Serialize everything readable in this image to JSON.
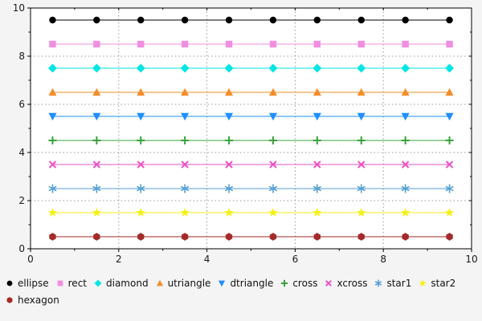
{
  "chart_data": {
    "type": "scatter",
    "title": "",
    "xlabel": "",
    "ylabel": "",
    "x": [
      0.5,
      1.5,
      2.5,
      3.5,
      4.5,
      5.5,
      6.5,
      7.5,
      8.5,
      9.5
    ],
    "series": [
      {
        "name": "ellipse",
        "y": 9.5,
        "marker": "circle",
        "color": "#000000"
      },
      {
        "name": "rect",
        "y": 8.5,
        "marker": "square",
        "color": "#f08fe0"
      },
      {
        "name": "diamond",
        "y": 7.5,
        "marker": "diamond",
        "color": "#00e5e5"
      },
      {
        "name": "utriangle",
        "y": 6.5,
        "marker": "utriangle",
        "color": "#f78c2a"
      },
      {
        "name": "dtriangle",
        "y": 5.5,
        "marker": "dtriangle",
        "color": "#1f8fff"
      },
      {
        "name": "cross",
        "y": 4.5,
        "marker": "cross",
        "color": "#3ca03c"
      },
      {
        "name": "xcross",
        "y": 3.5,
        "marker": "xcross",
        "color": "#ee53c6"
      },
      {
        "name": "star1",
        "y": 2.5,
        "marker": "star1",
        "color": "#56a0d3"
      },
      {
        "name": "star2",
        "y": 1.5,
        "marker": "star2",
        "color": "#f5f116"
      },
      {
        "name": "hexagon",
        "y": 0.5,
        "marker": "hexagon",
        "color": "#a52a2a"
      }
    ],
    "xlim": [
      0,
      10
    ],
    "ylim": [
      0,
      10
    ],
    "xticks": [
      0,
      2,
      4,
      6,
      8,
      10
    ],
    "yticks": [
      0,
      2,
      4,
      6,
      8,
      10
    ],
    "grid": true,
    "grid_style": "dotted",
    "legend_position": "bottom"
  },
  "colors": {
    "figure_background": "#f4f4f4",
    "plot_background": "#ffffff",
    "frame": "#000000",
    "grid": "#999999",
    "tick_label": "#1a1a1a",
    "legend_text": "#111111"
  }
}
